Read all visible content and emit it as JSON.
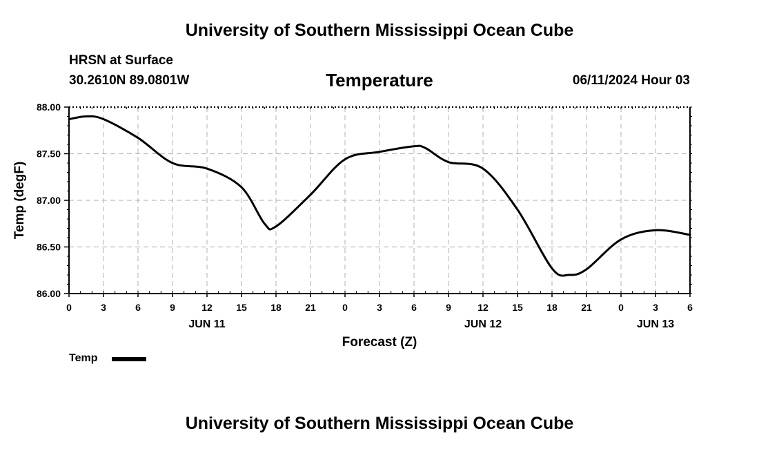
{
  "header": {
    "top_title": "University of Southern Mississippi Ocean Cube",
    "station": "HRSN at Surface",
    "coords": "30.2610N  89.0801W",
    "chart_title": "Temperature",
    "timestamp": "06/11/2024 Hour 03",
    "bottom_title": "University of Southern Mississippi Ocean Cube"
  },
  "legend": {
    "label": "Temp"
  },
  "chart_data": {
    "type": "line",
    "title": "Temperature",
    "xlabel": "Forecast (Z)",
    "ylabel": "Temp (degF)",
    "xlim": [
      0,
      54
    ],
    "ylim": [
      86.0,
      88.0
    ],
    "y_ticks": [
      86.0,
      86.5,
      87.0,
      87.5,
      88.0
    ],
    "y_tick_labels": [
      "86.00",
      "86.50",
      "87.00",
      "87.50",
      "88.00"
    ],
    "x_ticks": [
      0,
      3,
      6,
      9,
      12,
      15,
      18,
      21,
      24,
      27,
      30,
      33,
      36,
      39,
      42,
      45,
      48,
      51,
      54
    ],
    "x_tick_labels": [
      "0",
      "3",
      "6",
      "9",
      "12",
      "15",
      "18",
      "21",
      "0",
      "3",
      "6",
      "9",
      "12",
      "15",
      "18",
      "21",
      "0",
      "3",
      "6"
    ],
    "date_labels": [
      {
        "x": 12,
        "label": "JUN 11"
      },
      {
        "x": 36,
        "label": "JUN 12"
      },
      {
        "x": 51,
        "label": "JUN 13"
      }
    ],
    "grid": true,
    "legend_position": "bottom-left",
    "series": [
      {
        "name": "Temp",
        "color": "#000000",
        "x": [
          0,
          1.5,
          3,
          6,
          9,
          12,
          15,
          17,
          18,
          21,
          24,
          27,
          30,
          31,
          33,
          36,
          39,
          42,
          43.5,
          45,
          48,
          51,
          54
        ],
        "values": [
          87.87,
          87.9,
          87.87,
          87.67,
          87.4,
          87.34,
          87.14,
          86.75,
          86.72,
          87.06,
          87.44,
          87.52,
          87.58,
          87.56,
          87.41,
          87.34,
          86.9,
          86.27,
          86.2,
          86.26,
          86.58,
          86.68,
          86.63
        ]
      }
    ]
  }
}
